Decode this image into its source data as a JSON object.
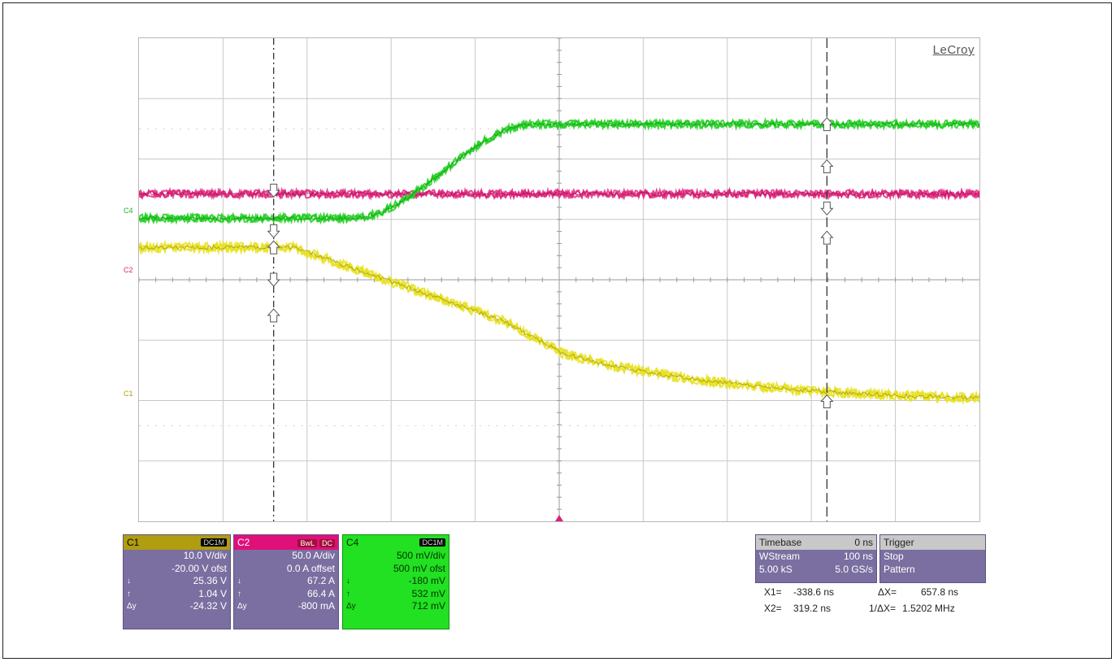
{
  "brand": "LeCroy",
  "traces": {
    "c4_label": "C4",
    "c2_label": "C2",
    "c1_label": "C1",
    "colors": {
      "c1": "#e8e020",
      "c2": "#e0207a",
      "c4": "#20d020"
    }
  },
  "channels": [
    {
      "name": "C1",
      "tag": "DC1M",
      "tag2": "",
      "scale": "10.0 V/div",
      "offset": "-20.00 V ofst",
      "down": "25.36 V",
      "up": "1.04 V",
      "dy_label": "Δy",
      "dy": "-24.32 V"
    },
    {
      "name": "C2",
      "tag": "BwL",
      "tag2": "DC",
      "scale": "50.0 A/div",
      "offset": "0.0 A offset",
      "down": "67.2 A",
      "up": "66.4 A",
      "dy_label": "Δy",
      "dy": "-800 mA"
    },
    {
      "name": "C4",
      "tag": "DC1M",
      "tag2": "",
      "scale": "500 mV/div",
      "offset": "500 mV ofst",
      "down": "-180 mV",
      "up": "532 mV",
      "dy_label": "Δy",
      "dy": "712 mV"
    }
  ],
  "timebase": {
    "label": "Timebase",
    "delay": "0 ns",
    "mode": "WStream",
    "per_div": "100 ns",
    "samples": "5.00 kS",
    "rate": "5.0 GS/s"
  },
  "trigger": {
    "label": "Trigger",
    "state": "Stop",
    "type": "Pattern"
  },
  "cursors": {
    "x1_label": "X1=",
    "x1": "-338.6 ns",
    "dx_label": "ΔX=",
    "dx": "657.8 ns",
    "x2_label": "X2=",
    "x2": "319.2 ns",
    "inv_label": "1/ΔX=",
    "inv": "1.5202 MHz"
  }
}
